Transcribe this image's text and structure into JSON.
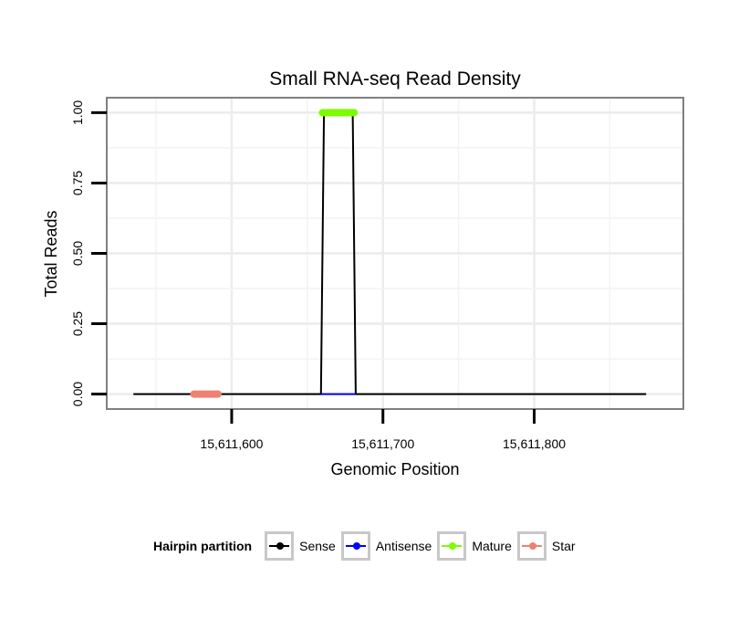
{
  "chart_data": {
    "type": "line",
    "title": "Small RNA-seq Read Density",
    "xlabel": "Genomic Position",
    "ylabel": "Total Reads",
    "xlim": [
      15611518,
      15611898
    ],
    "ylim": [
      -0.05,
      1.05
    ],
    "x_ticks": [
      15611600,
      15611700,
      15611800
    ],
    "x_tick_labels": [
      "15,611,600",
      "15,611,700",
      "15,611,800"
    ],
    "y_ticks": [
      0,
      0.25,
      0.5,
      0.75,
      1.0
    ],
    "y_tick_labels": [
      "0.00",
      "0.25",
      "0.50",
      "0.75",
      "1.00"
    ],
    "grid": true,
    "legend_position": "bottom",
    "legend_title": "Hairpin partition",
    "series": [
      {
        "name": "Sense",
        "color": "#000000",
        "kind": "line",
        "x": [
          15611535,
          15611659,
          15611661,
          15611680,
          15611682,
          15611874
        ],
        "y": [
          0,
          0,
          1,
          1,
          0,
          0
        ]
      },
      {
        "name": "Antisense",
        "color": "#0000ff",
        "kind": "line",
        "x": [
          15611659,
          15611682
        ],
        "y": [
          0,
          0
        ]
      },
      {
        "name": "Mature",
        "color": "#7cfc00",
        "kind": "segment",
        "x": [
          15611660,
          15611681
        ],
        "y": [
          1,
          1
        ]
      },
      {
        "name": "Star",
        "color": "#f08070",
        "kind": "segment",
        "x": [
          15611575,
          15611591
        ],
        "y": [
          0,
          0
        ]
      }
    ]
  }
}
